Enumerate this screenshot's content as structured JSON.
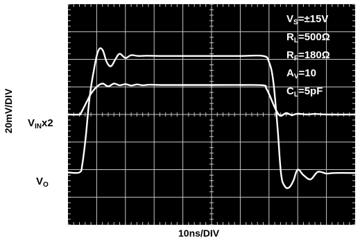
{
  "chart_data": {
    "type": "line",
    "xlabel": "10ns/DIV",
    "ylabel": "20mV/DIV",
    "grid": true,
    "x_divisions": 10,
    "y_divisions": 8,
    "series": [
      {
        "name": "VINx2",
        "x": [
          0,
          0.4,
          0.45,
          0.65,
          0.8,
          1.0,
          1.2,
          1.4,
          1.6,
          1.8,
          2.0,
          2.2,
          2.4,
          2.6,
          2.85,
          3.2,
          4.0,
          5.0,
          6.0,
          6.8,
          6.9,
          7.0,
          7.1,
          7.25,
          7.4,
          7.6,
          7.8,
          8.0,
          8.3,
          8.6,
          9.0,
          10.0
        ],
        "y": [
          4.0,
          4.0,
          4.05,
          4.45,
          4.75,
          5.0,
          5.12,
          5.02,
          5.12,
          5.06,
          5.1,
          5.05,
          5.09,
          5.06,
          5.08,
          5.07,
          5.07,
          5.07,
          5.07,
          5.06,
          4.95,
          4.75,
          4.5,
          4.15,
          3.95,
          4.05,
          3.98,
          4.03,
          4.0,
          4.02,
          4.0,
          4.0
        ]
      },
      {
        "name": "VO",
        "x": [
          0,
          0.4,
          0.5,
          0.62,
          0.75,
          0.9,
          1.05,
          1.2,
          1.35,
          1.5,
          1.65,
          1.8,
          2.0,
          2.2,
          2.45,
          2.75,
          3.2,
          4.0,
          5.0,
          6.0,
          6.8,
          7.0,
          7.15,
          7.3,
          7.42,
          7.55,
          7.7,
          7.85,
          8.0,
          8.2,
          8.45,
          8.7,
          9.0,
          9.3,
          10.0
        ],
        "y": [
          1.9,
          1.9,
          2.2,
          3.2,
          4.6,
          5.6,
          6.3,
          6.35,
          5.9,
          5.75,
          6.0,
          6.2,
          6.05,
          6.15,
          6.12,
          6.13,
          6.12,
          6.12,
          6.12,
          6.12,
          6.12,
          5.9,
          5.2,
          3.5,
          1.85,
          1.4,
          1.35,
          1.6,
          2.0,
          1.8,
          1.65,
          1.92,
          1.86,
          1.88,
          1.88
        ]
      }
    ]
  },
  "labels": {
    "vin_main": "V",
    "vin_sub": "IN",
    "vin_suffix": "x2",
    "vo_main": "V",
    "vo_sub": "O"
  },
  "params": {
    "vs_main": "V",
    "vs_sub": "S",
    "vs_rest": "=±15V",
    "rl_main": "R",
    "rl_sub": "L",
    "rl_rest": "=500Ω",
    "rf_main": "R",
    "rf_sub": "F",
    "rf_rest": "=180Ω",
    "av_main": "A",
    "av_sub": "V",
    "av_rest": "=10",
    "cl_main": "C",
    "cl_sub": "L",
    "cl_rest": "=5pF"
  },
  "colors": {
    "screen": "#000000",
    "grid": "#c8c8c8",
    "trace": "#ffffff"
  }
}
